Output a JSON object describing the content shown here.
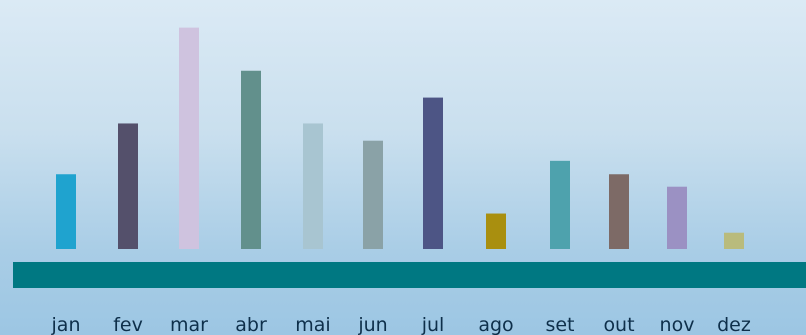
{
  "chart_data": {
    "type": "bar",
    "categories": [
      "jan",
      "fev",
      "mar",
      "abr",
      "mai",
      "jun",
      "jul",
      "ago",
      "set",
      "out",
      "nov",
      "dez"
    ],
    "values": [
      78,
      131,
      231,
      186,
      131,
      113,
      158,
      37,
      92,
      78,
      65,
      17
    ],
    "colors": [
      "#1fa3cf",
      "#54506b",
      "#cfc3df",
      "#62908c",
      "#a8c5d1",
      "#8aa2a7",
      "#4d5585",
      "#a98f0f",
      "#4ea2ad",
      "#7d6a66",
      "#9b91c3",
      "#b9bb7c"
    ],
    "baseline_color": "#007882",
    "ylim": [
      0,
      240
    ],
    "title": "",
    "xlabel": "",
    "ylabel": ""
  }
}
